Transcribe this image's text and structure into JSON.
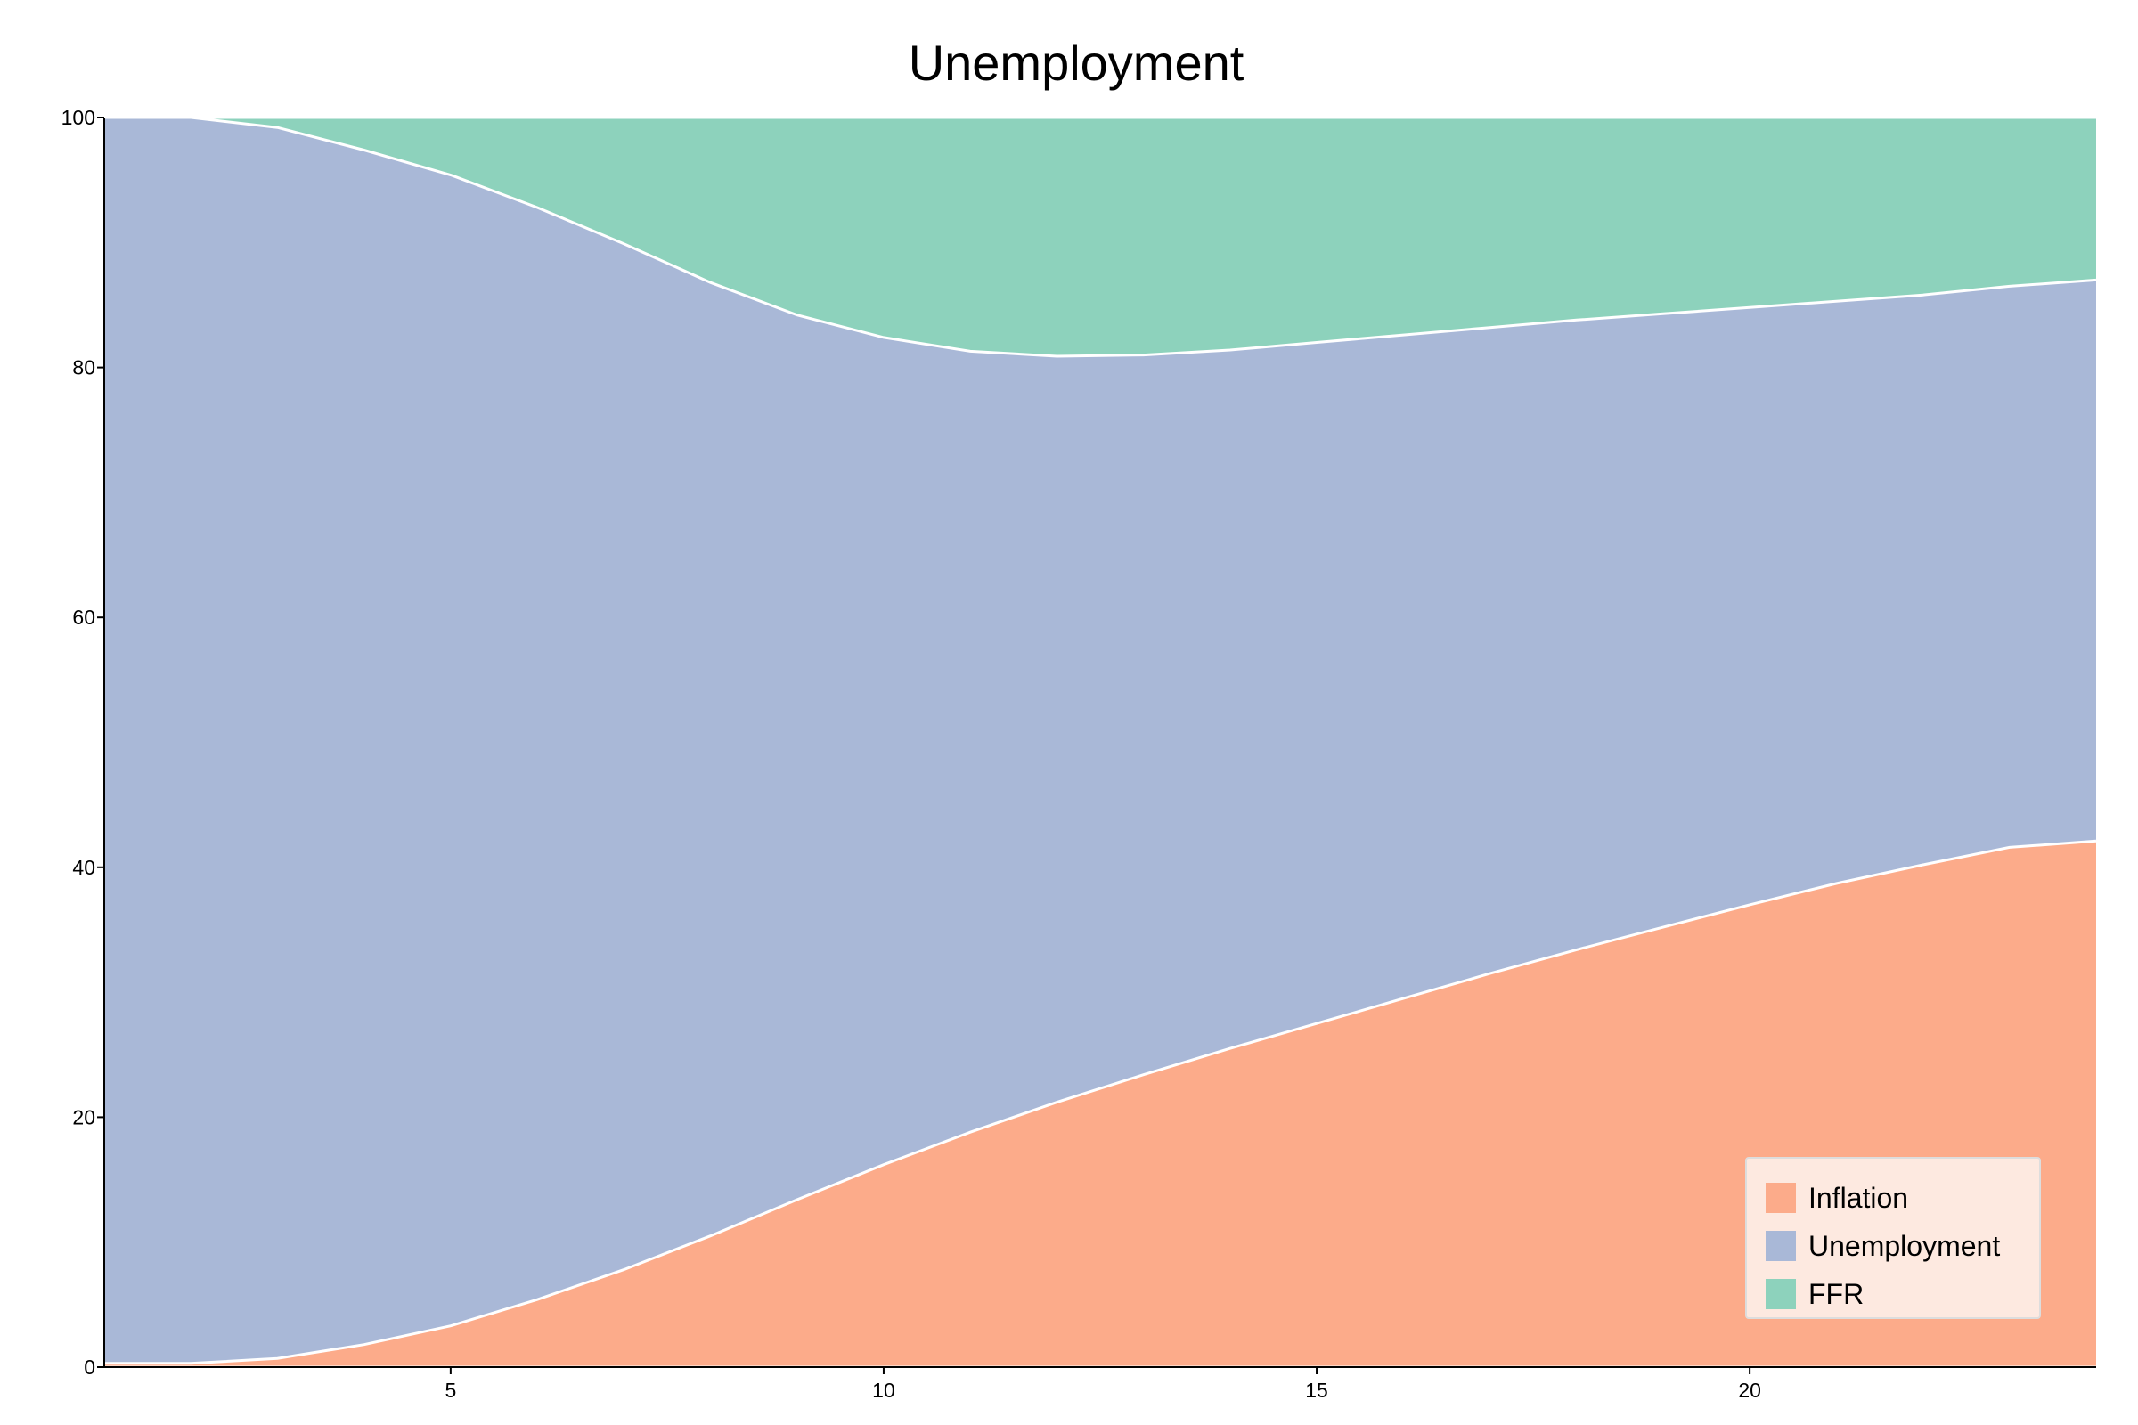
{
  "chart_data": {
    "type": "area",
    "stacked": true,
    "normalized_percent": true,
    "title": "Unemployment",
    "xlabel": "",
    "ylabel": "",
    "x": [
      1,
      2,
      3,
      4,
      5,
      6,
      7,
      8,
      9,
      10,
      11,
      12,
      13,
      14,
      15,
      16,
      17,
      18,
      19,
      20,
      21,
      22,
      23,
      24
    ],
    "xlim": [
      1,
      24
    ],
    "ylim": [
      0,
      100
    ],
    "x_ticks": [
      5,
      10,
      15,
      20
    ],
    "y_ticks": [
      0,
      20,
      40,
      60,
      80,
      100
    ],
    "grid": false,
    "legend_position": "bottom-right",
    "series": [
      {
        "name": "Inflation",
        "color": "#fcab8a",
        "values": [
          0.3,
          0.3,
          0.7,
          1.8,
          3.3,
          5.4,
          7.8,
          10.5,
          13.4,
          16.2,
          18.8,
          21.2,
          23.4,
          25.5,
          27.5,
          29.5,
          31.5,
          33.4,
          35.2,
          37.0,
          38.7,
          40.2,
          41.6,
          42.1
        ]
      },
      {
        "name": "Unemployment",
        "color": "#a9b8d7",
        "values": [
          99.7,
          99.7,
          98.5,
          95.6,
          92.1,
          87.4,
          82.1,
          76.3,
          70.8,
          66.2,
          62.5,
          59.7,
          57.6,
          55.9,
          54.5,
          53.1,
          51.7,
          50.4,
          49.1,
          47.8,
          46.6,
          45.6,
          44.9,
          44.9
        ]
      },
      {
        "name": "FFR",
        "color": "#8dd2bc",
        "values": [
          0.0,
          0.0,
          0.8,
          2.6,
          4.6,
          7.2,
          10.1,
          13.2,
          15.8,
          17.6,
          18.7,
          19.1,
          19.0,
          18.6,
          18.0,
          17.4,
          16.8,
          16.2,
          15.7,
          15.2,
          14.7,
          14.2,
          13.5,
          13.0
        ]
      }
    ]
  },
  "legend": {
    "background": "#fde9e0",
    "border": "#dddddd"
  }
}
